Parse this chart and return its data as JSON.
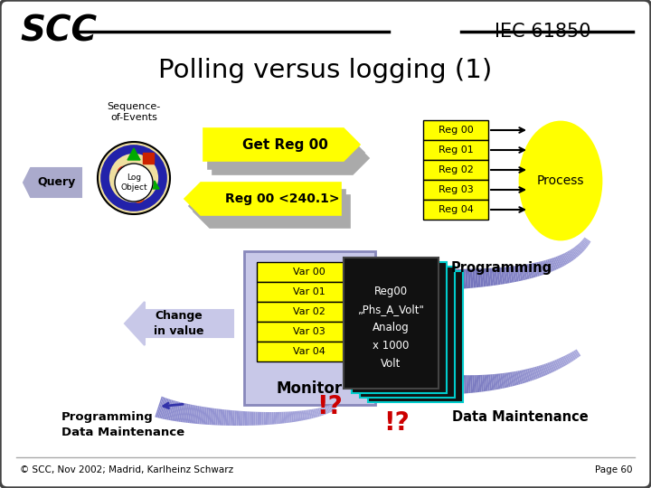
{
  "title": "Polling versus logging (1)",
  "scc_text": "SCC",
  "iec_text": "IEC 61850",
  "bg_color": "#ffffff",
  "border_color": "#444444",
  "footer_text": "© SCC, Nov 2002; Madrid, Karlheinz Schwarz",
  "page_text": "Page 60",
  "yellow": "#FFFF00",
  "yellow_dark": "#DDDD00",
  "yellow_shadow": "#AAAAAA",
  "blue_arrow_light": "#aaaadd",
  "blue_arrow_mid": "#7777bb",
  "blue_arrow_dark": "#3333aa",
  "reg_labels": [
    "Reg 00",
    "Reg 01",
    "Reg 02",
    "Reg 03",
    "Reg 04"
  ],
  "var_labels": [
    "Var 00",
    "Var 01",
    "Var 02",
    "Var 03",
    "Var 04"
  ],
  "get_reg_text": "Get Reg 00",
  "response_text": "Reg 00 <240.1>",
  "monitor_text": "Monitor",
  "process_text": "Process",
  "programming_text": "Programming",
  "data_maintenance_text": "Data Maintenance",
  "prog_data_text": "Programming\nData Maintenance",
  "log_object_text": "Log\nObject",
  "sequence_events_text": "Sequence-\nof-Events",
  "query_text": "Query",
  "change_text": "Change\nin value",
  "black_card_text": "Reg00\n„Phs_A_Volt\"\nAnalog\nx 1000\nVolt",
  "exclaim_text": "!?",
  "exclaim_color": "#cc0000",
  "monitor_bg": "#c8c8e8",
  "monitor_border": "#8888bb",
  "query_bg": "#aaaacc",
  "query_border": "#6666aa"
}
